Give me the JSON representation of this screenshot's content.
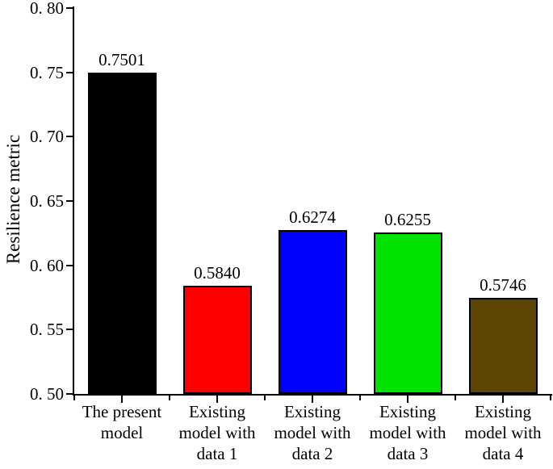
{
  "chart_data": {
    "type": "bar",
    "title": "",
    "xlabel": "",
    "ylabel": "Resilience metric",
    "categories": [
      "The present\nmodel",
      "Existing\nmodel with\ndata 1",
      "Existing\nmodel with\ndata 2",
      "Existing\nmodel with\ndata 3",
      "Existing\nmodel with\ndata 4"
    ],
    "values": [
      0.7501,
      0.584,
      0.6274,
      0.6255,
      0.5746
    ],
    "value_labels": [
      "0.7501",
      "0.5840",
      "0.6274",
      "0.6255",
      "0.5746"
    ],
    "bar_colors": [
      "#000000",
      "#FF0000",
      "#0000FF",
      "#00E300",
      "#5C4402"
    ],
    "ylim": [
      0.5,
      0.8
    ],
    "ytick_step": 0.05,
    "ytick_labels": [
      "0. 50",
      "0. 55",
      "0. 60",
      "0. 65",
      "0. 70",
      "0. 75",
      "0. 80"
    ],
    "grid": false,
    "legend": "none",
    "axis_color": "#000000"
  }
}
